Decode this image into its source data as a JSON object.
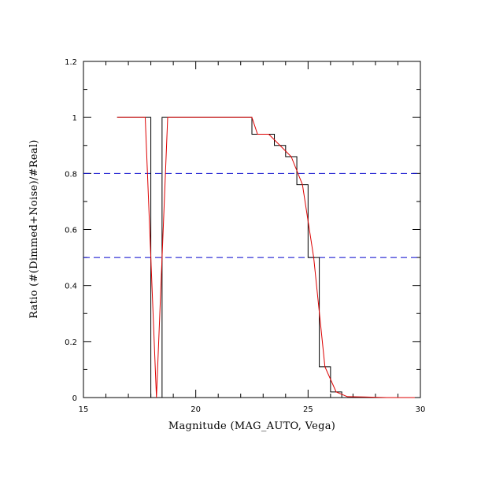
{
  "chart_data": {
    "type": "line",
    "xlabel": "Magnitude (MAG_AUTO, Vega)",
    "ylabel": "Ratio (#(Dimmed+Noise)/#Real)",
    "xlim": [
      15,
      30
    ],
    "ylim": [
      0,
      1.2
    ],
    "x_ticks": [
      15,
      20,
      25,
      30
    ],
    "x_tick_labels": [
      "15",
      "20",
      "25",
      "30"
    ],
    "x_minor_step": 1,
    "y_ticks": [
      0,
      0.2,
      0.4,
      0.6,
      0.8,
      1,
      1.2
    ],
    "y_tick_labels": [
      "0",
      "0.2",
      "0.4",
      "0.6",
      "0.8",
      "1",
      "1.2"
    ],
    "y_minor_step": 0.1,
    "grid": false,
    "reference_lines": [
      {
        "y": 0.8,
        "color": "#0000cc",
        "style": "dashed"
      },
      {
        "y": 0.5,
        "color": "#0000cc",
        "style": "dashed"
      }
    ],
    "series": [
      {
        "style": "step",
        "color": "#000000",
        "bin_width": 0.5,
        "x": [
          16.75,
          17.25,
          17.75,
          18.25,
          18.75,
          19.25,
          19.75,
          20.25,
          20.75,
          21.25,
          21.75,
          22.25,
          22.75,
          23.25,
          23.75,
          24.25,
          24.75,
          25.25,
          25.75,
          26.25,
          26.75,
          27.25,
          27.75,
          28.25,
          28.75,
          29.25,
          29.75
        ],
        "y": [
          1,
          1,
          1,
          0,
          1,
          1,
          1,
          1,
          1,
          1,
          1,
          1,
          0.94,
          0.94,
          0.9,
          0.86,
          0.76,
          0.5,
          0.11,
          0.02,
          0,
          0,
          0,
          0,
          0,
          0,
          0
        ]
      },
      {
        "style": "line",
        "color": "#dd0000",
        "x": [
          16.5,
          17.75,
          18.25,
          18.75,
          20.25,
          21.75,
          22.5,
          22.75,
          23.25,
          23.75,
          24.25,
          24.75,
          25.25,
          25.75,
          26.25,
          26.75,
          27.5,
          28.5,
          29.75
        ],
        "y": [
          1,
          1,
          0,
          1,
          1,
          1,
          1,
          0.94,
          0.94,
          0.9,
          0.86,
          0.76,
          0.5,
          0.11,
          0.02,
          0.003,
          0.002,
          0,
          0
        ]
      }
    ]
  }
}
